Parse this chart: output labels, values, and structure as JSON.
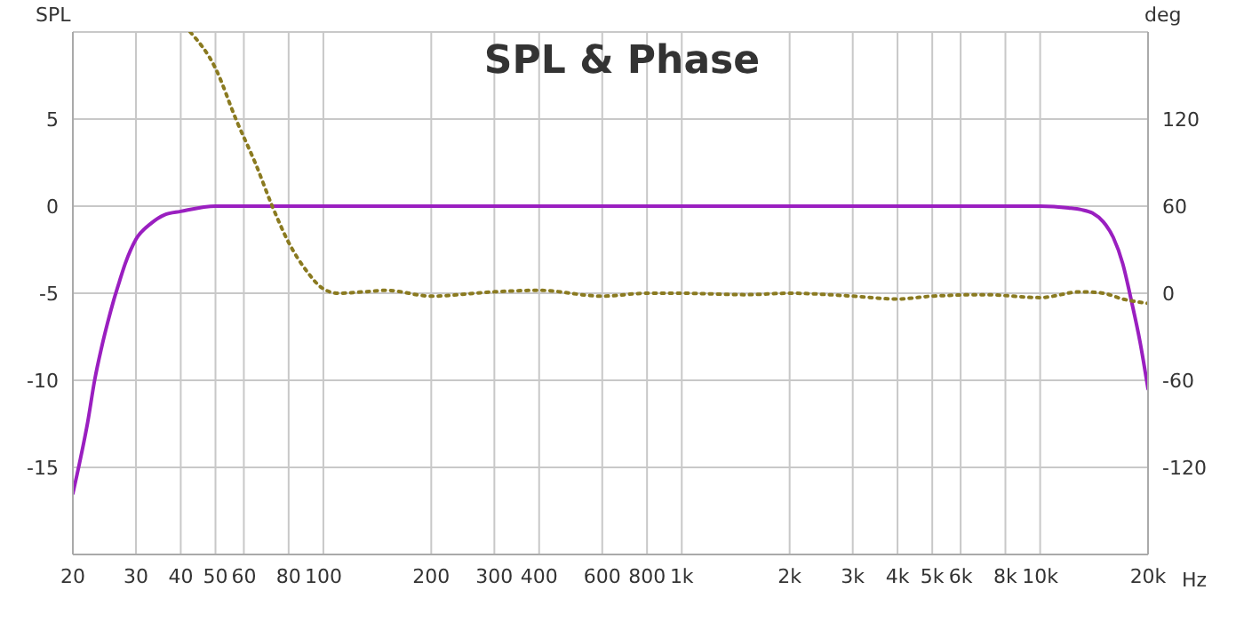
{
  "chart_data": {
    "type": "line",
    "title": "SPL & Phase",
    "ylabel": "SPL",
    "y2label": "deg",
    "log": "x",
    "grid": true,
    "legend": false,
    "marker": "none",
    "xlim": [
      20,
      20000
    ],
    "xticks": [
      20,
      30,
      40,
      50,
      60,
      80,
      100,
      200,
      300,
      400,
      600,
      800,
      {
        "value": 1000,
        "label": "1k"
      },
      {
        "value": 2000,
        "label": "2k"
      },
      {
        "value": 3000,
        "label": "3k"
      },
      {
        "value": 4000,
        "label": "4k"
      },
      {
        "value": 5000,
        "label": "5k"
      },
      {
        "value": 6000,
        "label": "6k"
      },
      {
        "value": 8000,
        "label": "8k"
      },
      {
        "value": 10000,
        "label": "10k"
      },
      {
        "value": 20000,
        "label": "20k"
      }
    ],
    "xlabel": "Hz",
    "ylim": [
      -20,
      10
    ],
    "yticks": [
      -15,
      -10,
      -5,
      0,
      5
    ],
    "y2lim": [
      -180,
      180
    ],
    "y2ticks": [
      -120,
      -60,
      0,
      60,
      120
    ],
    "series": [
      {
        "color": "#9a1fc0",
        "line_style": "solid",
        "x": [
          20,
          21,
          22,
          23,
          24,
          25,
          26,
          27,
          28,
          30,
          33,
          36,
          40,
          50,
          60,
          100,
          1000,
          10000,
          12000,
          13000,
          14000,
          15000,
          16000,
          17000,
          18000,
          19000,
          20000
        ],
        "values": [
          -16.5,
          -14.5,
          -12.4,
          -10,
          -8.2,
          -6.7,
          -5.4,
          -4.3,
          -3.3,
          -1.9,
          -1.0,
          -0.5,
          -0.3,
          0,
          0,
          0,
          0,
          0,
          -0.1,
          -0.2,
          -0.4,
          -0.9,
          -1.8,
          -3.3,
          -5.5,
          -7.8,
          -10.5
        ]
      },
      {
        "color": "#8a7a20",
        "line_style": "dotted",
        "axis": "y2",
        "x": [
          42.5,
          50,
          57,
          65,
          72,
          80,
          90,
          100,
          110,
          130,
          150,
          200,
          300,
          400,
          600,
          800,
          1000,
          1500,
          2000,
          3000,
          4000,
          5000,
          7000,
          10000,
          13000,
          15000,
          17000,
          20000
        ],
        "values": [
          180,
          155,
          120,
          88,
          60,
          35,
          15,
          3,
          0,
          1,
          2,
          -2,
          1,
          2,
          -2,
          0,
          0,
          -1,
          0,
          -2,
          -4,
          -2,
          -1,
          -3,
          1,
          0,
          -4,
          -7
        ]
      }
    ]
  }
}
